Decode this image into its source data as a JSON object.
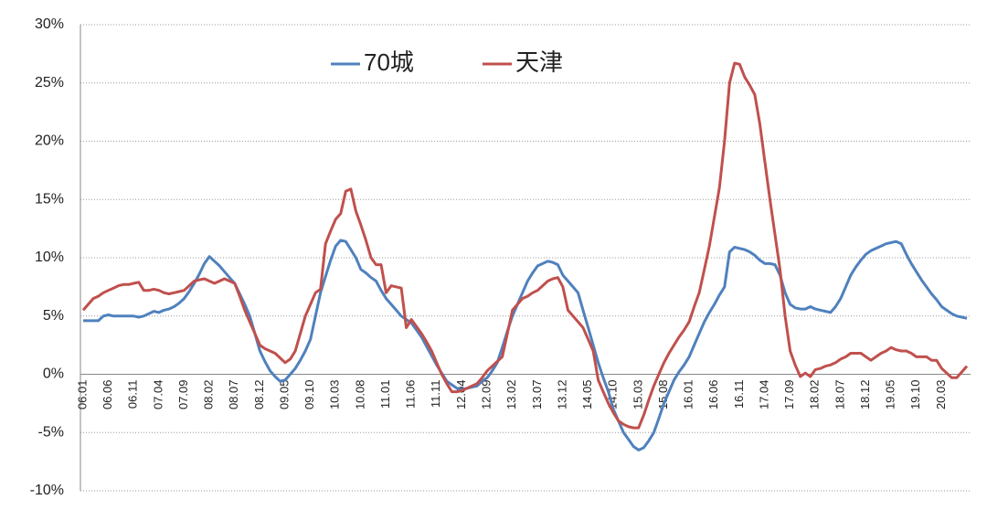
{
  "chart_data": {
    "type": "line",
    "categories": [
      "06.01",
      null,
      null,
      null,
      null,
      "06.06",
      null,
      null,
      null,
      null,
      "06.11",
      null,
      null,
      null,
      null,
      "07.04",
      null,
      null,
      null,
      null,
      "07.09",
      null,
      null,
      null,
      null,
      "08.02",
      null,
      null,
      null,
      null,
      "08.07",
      null,
      null,
      null,
      null,
      "08.12",
      null,
      null,
      null,
      null,
      "09.05",
      null,
      null,
      null,
      null,
      "09.10",
      null,
      null,
      null,
      null,
      "10.03",
      null,
      null,
      null,
      null,
      "10.08",
      null,
      null,
      null,
      null,
      "11.01",
      null,
      null,
      null,
      null,
      "11.06",
      null,
      null,
      null,
      null,
      "11.11",
      null,
      null,
      null,
      null,
      "12.04",
      null,
      null,
      null,
      null,
      "12.09",
      null,
      null,
      null,
      null,
      "13.02",
      null,
      null,
      null,
      null,
      "13.07",
      null,
      null,
      null,
      null,
      "13.12",
      null,
      null,
      null,
      null,
      "14.05",
      null,
      null,
      null,
      null,
      "14.10",
      null,
      null,
      null,
      null,
      "15.03",
      null,
      null,
      null,
      null,
      "15.08",
      null,
      null,
      null,
      null,
      "16.01",
      null,
      null,
      null,
      null,
      "16.06",
      null,
      null,
      null,
      null,
      "16.11",
      null,
      null,
      null,
      null,
      "17.04",
      null,
      null,
      null,
      null,
      "17.09",
      null,
      null,
      null,
      null,
      "18.02",
      null,
      null,
      null,
      null,
      "18.07",
      null,
      null,
      null,
      null,
      "18.12",
      null,
      null,
      null,
      null,
      "19.05",
      null,
      null,
      null,
      null,
      "19.10",
      null,
      null,
      null,
      null,
      "20.03",
      null,
      null,
      null,
      null,
      null
    ],
    "series": [
      {
        "name": "70城",
        "color": "#4f81bd",
        "values": [
          4.6,
          4.6,
          4.6,
          4.6,
          5.0,
          5.1,
          5.0,
          5.0,
          5.0,
          5.0,
          5.0,
          4.9,
          5.0,
          5.2,
          5.4,
          5.3,
          5.5,
          5.6,
          5.8,
          6.1,
          6.5,
          7.1,
          7.8,
          8.6,
          9.5,
          10.1,
          9.7,
          9.3,
          8.8,
          8.3,
          7.8,
          6.9,
          6.0,
          5.0,
          3.5,
          2.0,
          1.1,
          0.3,
          -0.2,
          -0.6,
          -0.5,
          0.0,
          0.5,
          1.2,
          2.0,
          3.0,
          5.0,
          7.0,
          8.4,
          9.8,
          11.0,
          11.5,
          11.4,
          10.7,
          10.0,
          9.0,
          8.7,
          8.3,
          8.0,
          7.2,
          6.5,
          6.0,
          5.5,
          5.0,
          4.7,
          4.4,
          3.8,
          3.2,
          2.4,
          1.6,
          0.8,
          0.1,
          -0.6,
          -0.9,
          -1.2,
          -1.3,
          -1.2,
          -1.1,
          -1.0,
          -0.6,
          -0.3,
          0.3,
          1.0,
          2.3,
          3.7,
          5.0,
          6.0,
          7.0,
          8.0,
          8.7,
          9.3,
          9.5,
          9.7,
          9.6,
          9.4,
          8.5,
          8.0,
          7.5,
          7.0,
          5.5,
          4.0,
          2.5,
          1.0,
          -0.3,
          -1.5,
          -3.0,
          -4.0,
          -5.0,
          -5.6,
          -6.2,
          -6.5,
          -6.3,
          -5.7,
          -5.0,
          -3.8,
          -2.5,
          -1.5,
          -0.5,
          0.2,
          0.8,
          1.5,
          2.5,
          3.5,
          4.5,
          5.3,
          6.0,
          6.8,
          7.5,
          10.5,
          10.9,
          10.8,
          10.7,
          10.5,
          10.2,
          9.8,
          9.5,
          9.5,
          9.4,
          8.5,
          7.0,
          6.0,
          5.7,
          5.6,
          5.6,
          5.8,
          5.6,
          5.5,
          5.4,
          5.3,
          5.8,
          6.5,
          7.5,
          8.5,
          9.2,
          9.8,
          10.3,
          10.6,
          10.8,
          11.0,
          11.2,
          11.3,
          11.4,
          11.2,
          10.3,
          9.5,
          8.8,
          8.1,
          7.5,
          6.9,
          6.4,
          5.8,
          5.5,
          5.2,
          5.0,
          4.9,
          4.8
        ]
      },
      {
        "name": "天津",
        "color": "#c0504d",
        "values": [
          5.5,
          6.0,
          6.5,
          6.7,
          7.0,
          7.2,
          7.4,
          7.6,
          7.7,
          7.7,
          7.8,
          7.9,
          7.2,
          7.2,
          7.3,
          7.2,
          7.0,
          6.9,
          7.0,
          7.1,
          7.2,
          7.6,
          8.0,
          8.1,
          8.2,
          8.0,
          7.8,
          8.0,
          8.2,
          8.0,
          7.8,
          6.7,
          5.5,
          4.5,
          3.5,
          2.5,
          2.2,
          2.0,
          1.8,
          1.4,
          1.0,
          1.3,
          2.0,
          3.5,
          5.0,
          6.0,
          7.0,
          7.3,
          11.2,
          12.3,
          13.3,
          13.8,
          15.7,
          15.9,
          14.0,
          12.8,
          11.5,
          10.0,
          9.4,
          9.4,
          7.0,
          7.6,
          7.5,
          7.4,
          4.0,
          4.7,
          4.1,
          3.5,
          2.8,
          2.0,
          1.0,
          0.0,
          -0.8,
          -1.5,
          -1.5,
          -1.4,
          -1.2,
          -1.0,
          -0.8,
          -0.3,
          0.3,
          0.7,
          1.1,
          1.5,
          3.5,
          5.5,
          6.0,
          6.5,
          6.7,
          7.0,
          7.2,
          7.6,
          8.0,
          8.2,
          8.3,
          7.5,
          5.5,
          5.0,
          4.5,
          4.0,
          3.0,
          2.0,
          -0.5,
          -1.5,
          -2.5,
          -3.3,
          -4.0,
          -4.3,
          -4.5,
          -4.6,
          -4.6,
          -3.5,
          -2.2,
          -1.0,
          0.0,
          1.0,
          1.8,
          2.5,
          3.2,
          3.8,
          4.5,
          5.8,
          7.0,
          9.0,
          11.0,
          13.5,
          16.0,
          20.0,
          25.0,
          26.7,
          26.6,
          25.5,
          24.8,
          24.0,
          21.5,
          18.2,
          15.0,
          12.0,
          9.0,
          5.0,
          2.0,
          0.8,
          -0.2,
          0.1,
          -0.2,
          0.4,
          0.5,
          0.7,
          0.8,
          1.0,
          1.3,
          1.5,
          1.8,
          1.8,
          1.8,
          1.5,
          1.2,
          1.5,
          1.8,
          2.0,
          2.3,
          2.1,
          2.0,
          2.0,
          1.8,
          1.5,
          1.5,
          1.5,
          1.2,
          1.2,
          0.5,
          0.1,
          -0.3,
          -0.3,
          0.2,
          0.7
        ]
      }
    ],
    "ylim": [
      -10,
      30
    ],
    "yticks": [
      {
        "value": -10,
        "label": "-10%"
      },
      {
        "value": -5,
        "label": "-5%"
      },
      {
        "value": 0,
        "label": "0%"
      },
      {
        "value": 5,
        "label": "5%"
      },
      {
        "value": 10,
        "label": "10%"
      },
      {
        "value": 15,
        "label": "15%"
      },
      {
        "value": 20,
        "label": "20%"
      },
      {
        "value": 25,
        "label": "25%"
      },
      {
        "value": 30,
        "label": "30%"
      }
    ],
    "grid": true,
    "legend": "top"
  }
}
